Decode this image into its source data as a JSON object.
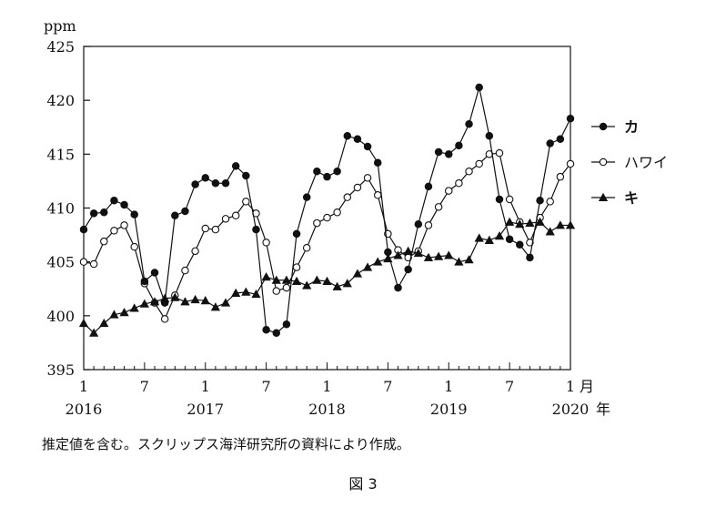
{
  "chart_data": {
    "type": "line",
    "y_unit": "ppm",
    "ylim": [
      395,
      425
    ],
    "yticks": [
      395,
      400,
      405,
      410,
      415,
      420,
      425
    ],
    "x_month_ticks": [
      "1",
      "7",
      "1",
      "7",
      "1",
      "7",
      "1",
      "7",
      "1"
    ],
    "x_year_labels": [
      "2016",
      "2017",
      "2018",
      "2019",
      "2020"
    ],
    "x_end_month_suffix": "月",
    "x_end_year_suffix": "年",
    "legend_placement": "right",
    "series": [
      {
        "name": "カ",
        "marker": "filled-circle",
        "values": [
          408.0,
          409.5,
          409.6,
          410.7,
          410.3,
          409.4,
          403.2,
          404.0,
          401.2,
          409.3,
          409.7,
          412.2,
          412.8,
          412.3,
          412.3,
          413.9,
          413.0,
          408.0,
          398.7,
          398.4,
          399.2,
          407.6,
          411.0,
          413.4,
          412.9,
          413.4,
          416.7,
          416.4,
          415.7,
          414.2,
          405.9,
          402.6,
          404.3,
          408.5,
          412.0,
          415.2,
          415.0,
          415.8,
          417.8,
          421.2,
          416.7,
          410.8,
          407.1,
          406.6,
          405.4,
          410.7,
          416.0,
          416.4,
          418.3
        ]
      },
      {
        "name": "ハワイ",
        "marker": "open-circle",
        "values": [
          405.0,
          404.8,
          406.9,
          407.9,
          408.4,
          406.4,
          403.0,
          401.2,
          399.7,
          401.9,
          404.2,
          406.0,
          408.1,
          408.0,
          409.0,
          409.3,
          410.6,
          409.5,
          406.8,
          402.3,
          402.6,
          404.5,
          406.3,
          408.6,
          409.1,
          409.6,
          411.0,
          411.9,
          412.8,
          411.2,
          407.6,
          406.1,
          405.4,
          406.0,
          408.4,
          410.1,
          411.6,
          412.3,
          413.4,
          414.1,
          415.0,
          415.1,
          410.8,
          408.7,
          406.8,
          409.1,
          410.6,
          412.9,
          414.1
        ]
      },
      {
        "name": "キ",
        "marker": "filled-triangle",
        "values": [
          399.3,
          398.4,
          399.3,
          400.1,
          400.3,
          400.7,
          401.1,
          401.3,
          401.6,
          401.7,
          401.3,
          401.5,
          401.4,
          400.8,
          401.2,
          402.1,
          402.2,
          402.0,
          403.6,
          403.3,
          403.3,
          403.2,
          402.8,
          403.3,
          403.2,
          402.7,
          403.0,
          403.9,
          404.5,
          405.0,
          405.3,
          405.6,
          406.0,
          405.8,
          405.4,
          405.5,
          405.6,
          405.0,
          405.2,
          407.2,
          407.0,
          407.4,
          408.7,
          408.5,
          408.6,
          408.7,
          407.8,
          408.4,
          408.4
        ]
      }
    ]
  },
  "note": "推定値を含む。スクリップス海洋研究所の資料により作成。",
  "caption": "図 3"
}
